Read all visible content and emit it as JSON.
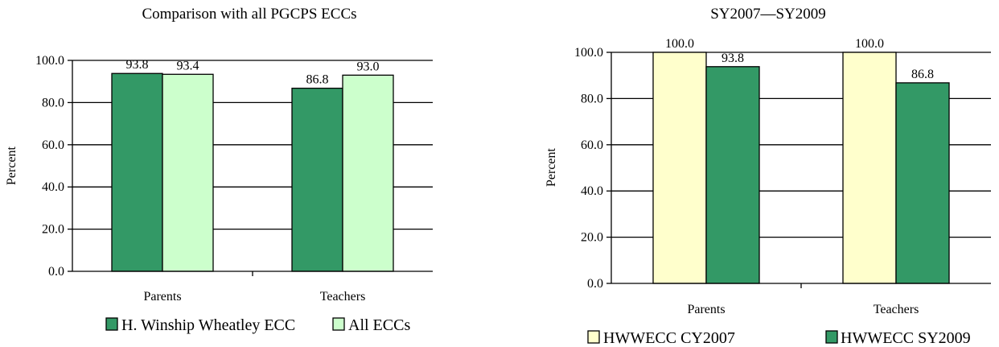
{
  "chart_data": [
    {
      "type": "bar",
      "title": "Comparison with all PGCPS ECCs",
      "xlabel": "",
      "ylabel": "Percent",
      "ylim": [
        0,
        100
      ],
      "yticks": [
        "0.0",
        "20.0",
        "40.0",
        "60.0",
        "80.0",
        "100.0"
      ],
      "categories": [
        "Parents",
        "Teachers"
      ],
      "grid": true,
      "legend_position": "bottom",
      "series": [
        {
          "name": "H. Winship Wheatley ECC",
          "values": [
            93.8,
            86.8
          ],
          "labels": [
            "93.8",
            "86.8"
          ],
          "color": "#339966"
        },
        {
          "name": "All ECCs",
          "values": [
            93.4,
            93.0
          ],
          "labels": [
            "93.4",
            "93.0"
          ],
          "color": "#ccffcc"
        }
      ]
    },
    {
      "type": "bar",
      "title": "SY2007—SY2009",
      "xlabel": "",
      "ylabel": "Percent",
      "ylim": [
        0,
        100
      ],
      "yticks": [
        "0.0",
        "20.0",
        "40.0",
        "60.0",
        "80.0",
        "100.0"
      ],
      "categories": [
        "Parents",
        "Teachers"
      ],
      "grid": true,
      "legend_position": "bottom",
      "series": [
        {
          "name": "HWWECC CY2007",
          "values": [
            100.0,
            100.0
          ],
          "labels": [
            "100.0",
            "100.0"
          ],
          "color": "#ffffcc"
        },
        {
          "name": "HWWECC SY2009",
          "values": [
            93.8,
            86.8
          ],
          "labels": [
            "93.8",
            "86.8"
          ],
          "color": "#339966"
        }
      ]
    }
  ]
}
